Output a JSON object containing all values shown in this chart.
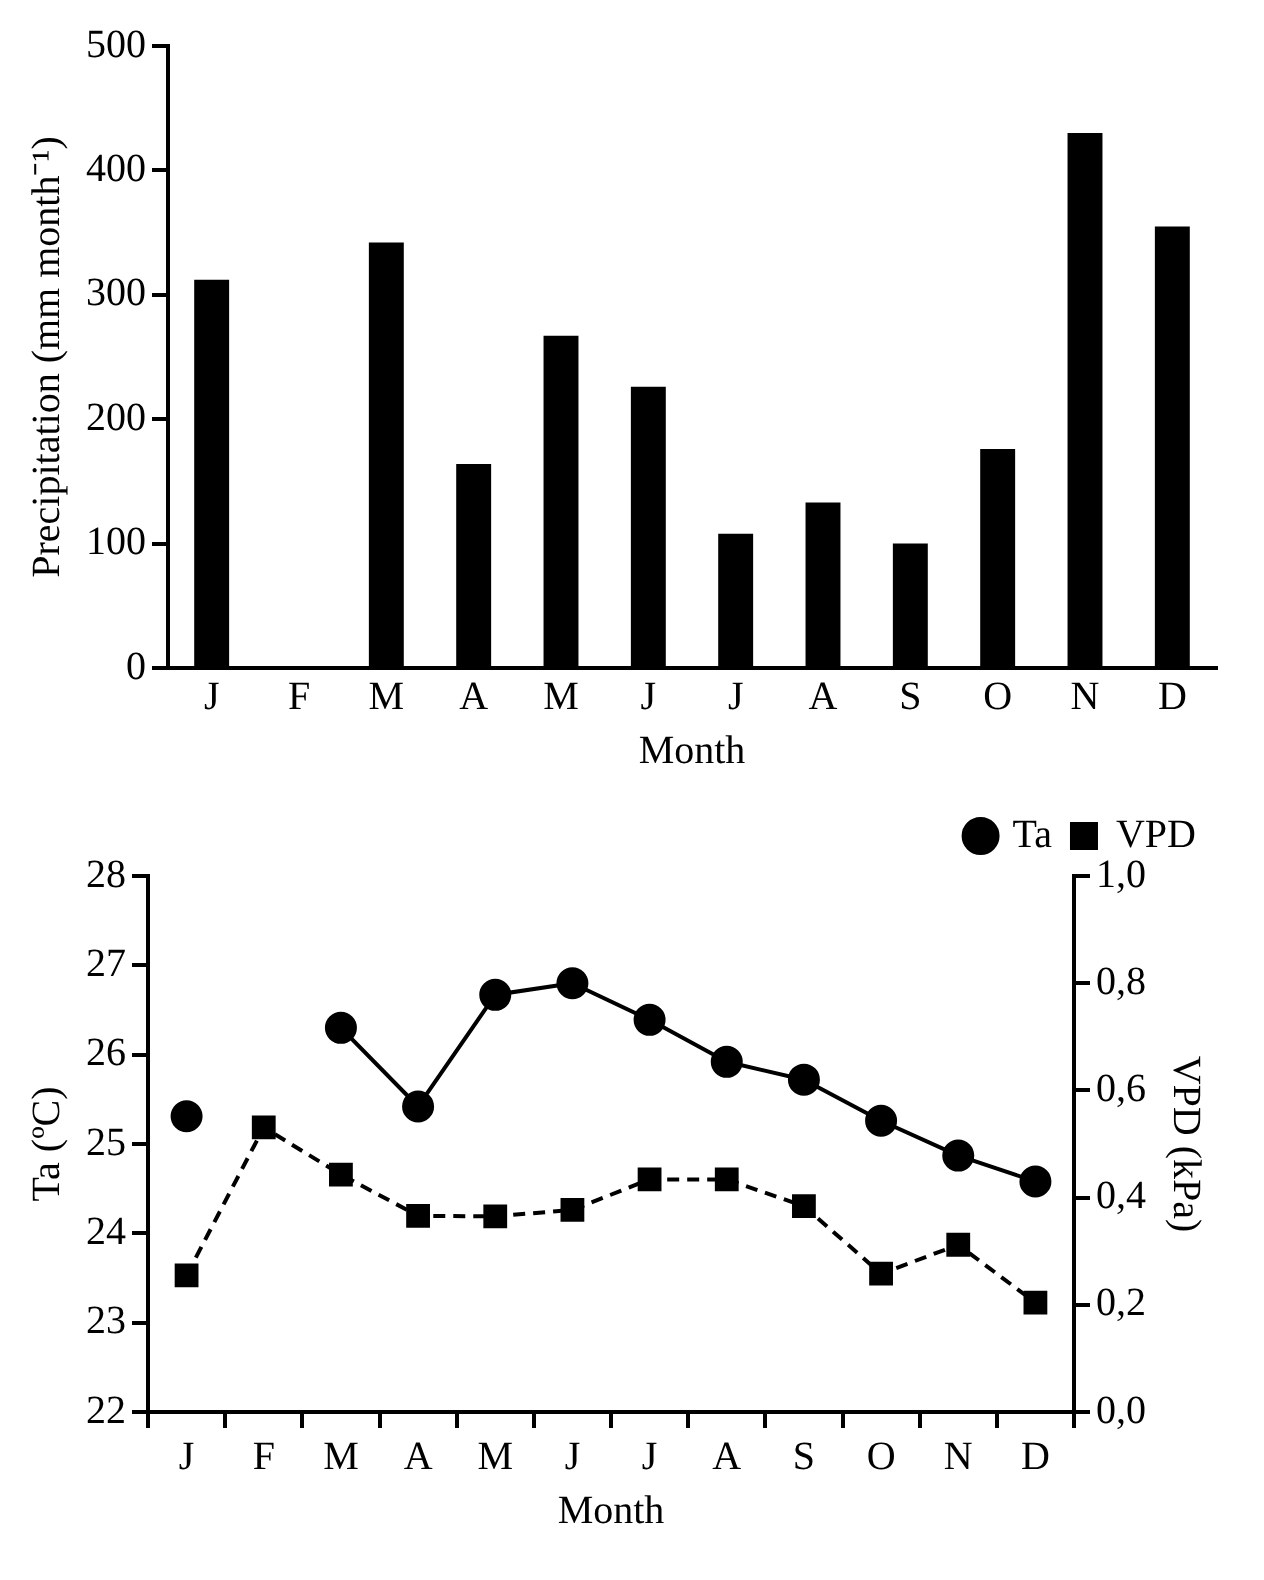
{
  "chart_data": [
    {
      "type": "bar",
      "xlabel": "Month",
      "ylabel": "Precipitation (mm month⁻¹)",
      "categories": [
        "J",
        "F",
        "M",
        "A",
        "M",
        "J",
        "J",
        "A",
        "S",
        "O",
        "N",
        "D"
      ],
      "values": [
        312,
        0,
        342,
        164,
        267,
        226,
        108,
        133,
        100,
        176,
        430,
        355
      ],
      "color": "#000000",
      "ylim": [
        0,
        500
      ],
      "yticks": [
        0,
        100,
        200,
        300,
        400,
        500
      ],
      "grid": false,
      "legend": false
    },
    {
      "type": "line",
      "xlabel": "Month",
      "ylabel": "Ta (ºC)",
      "y2label": "VPD (kPa)",
      "categories": [
        "J",
        "F",
        "M",
        "A",
        "M",
        "J",
        "J",
        "A",
        "S",
        "O",
        "N",
        "D"
      ],
      "series": [
        {
          "name": "Ta",
          "color": "#000000",
          "marker": "circle",
          "line_style": "solid",
          "values": [
            25.31,
            null,
            26.3,
            25.42,
            26.67,
            26.8,
            26.39,
            25.92,
            25.72,
            25.26,
            24.87,
            24.58
          ]
        },
        {
          "name": "VPD",
          "color": "#000000",
          "marker": "square",
          "line_style": "dashed",
          "axis": "y2",
          "values": [
            0.255,
            0.531,
            0.443,
            0.366,
            0.365,
            0.377,
            0.434,
            0.434,
            0.384,
            0.258,
            0.312,
            0.204
          ]
        }
      ],
      "ylim": [
        22,
        28
      ],
      "yticks": [
        22,
        23,
        24,
        25,
        26,
        27,
        28
      ],
      "y2lim": [
        0,
        1
      ],
      "y2ticks": [
        {
          "value": 0,
          "label": "0,0"
        },
        {
          "value": 0.2,
          "label": "0,2"
        },
        {
          "value": 0.4,
          "label": "0,4"
        },
        {
          "value": 0.6,
          "label": "0,6"
        },
        {
          "value": 0.8,
          "label": "0,8"
        },
        {
          "value": 1,
          "label": "1,0"
        }
      ],
      "grid": false,
      "legend": "top right"
    }
  ]
}
